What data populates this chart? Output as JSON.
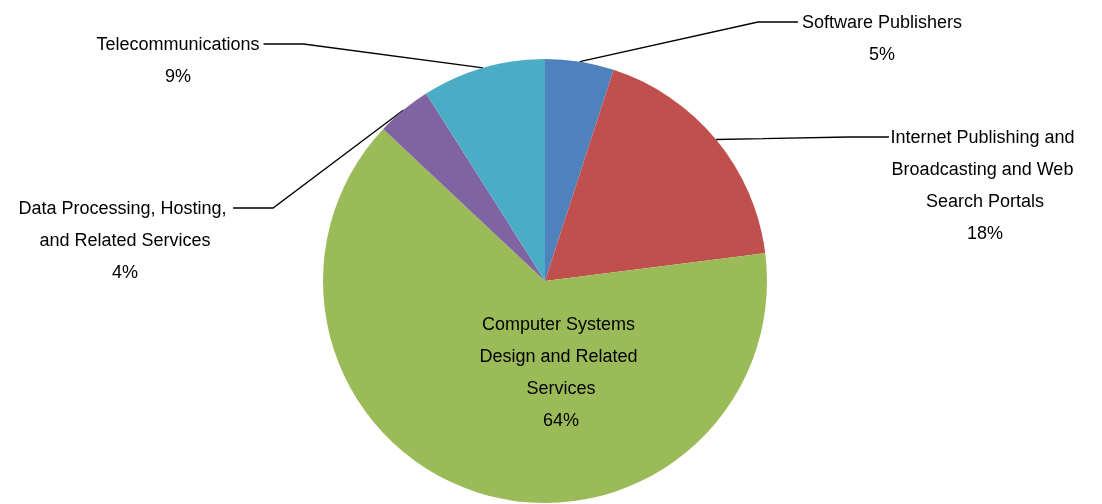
{
  "chart_data": {
    "type": "pie",
    "categories": [
      "Software Publishers",
      "Internet Publishing and Broadcasting and Web Search Portals",
      "Computer Systems Design and Related Services",
      "Data Processing, Hosting, and Related Services",
      "Telecommunications"
    ],
    "values": [
      5,
      18,
      64,
      4,
      9
    ],
    "colors": [
      "#4f81bd",
      "#c0504d",
      "#9bbb59",
      "#8064a2",
      "#4bacc6"
    ],
    "value_labels": [
      "5%",
      "18%",
      "64%",
      "4%",
      "9%"
    ],
    "legend": false
  }
}
